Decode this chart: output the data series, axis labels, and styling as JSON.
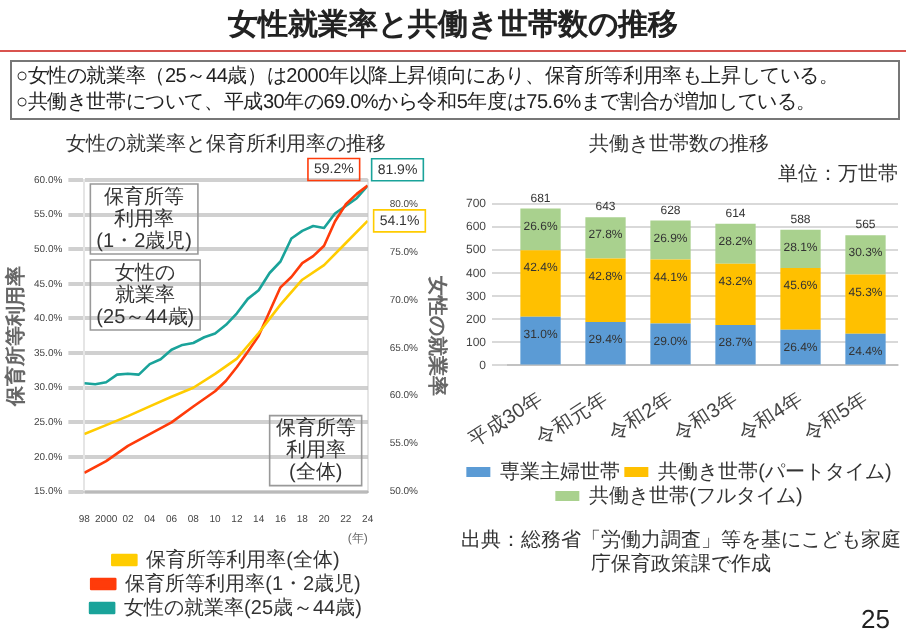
{
  "chart_data": [
    {
      "type": "other",
      "title": "女性就業率と共働き世帯数の推移",
      "annotations": [
        "○女性の就業率（25～44歳）は2000年以降上昇傾向にあり、保育所等利用率も上昇している。",
        "○共働き世帯について、平成30年の69.0%から令和5年度は75.6%まで割合が増加している。",
        "25"
      ]
    },
    {
      "type": "line",
      "title": "女性の就業率と保育所利用率の推移",
      "ylabel": "保育所等利用率",
      "y2label": "女性の就業率",
      "xlabel": "(年)",
      "xlim": [
        1998,
        2024
      ],
      "xticks": [
        {
          "value": 1998,
          "label": "98"
        },
        2000,
        {
          "value": 2002,
          "label": "02"
        },
        {
          "value": 2004,
          "label": "04"
        },
        {
          "value": 2006,
          "label": "06"
        },
        {
          "value": 2008,
          "label": "08"
        },
        {
          "value": 2010,
          "label": "10"
        },
        {
          "value": 2012,
          "label": "12"
        },
        {
          "value": 2014,
          "label": "14"
        },
        {
          "value": 2016,
          "label": "16"
        },
        {
          "value": 2018,
          "label": "18"
        },
        {
          "value": 2020,
          "label": "20"
        },
        {
          "value": 2022,
          "label": "22"
        },
        {
          "value": 2024,
          "label": "24"
        }
      ],
      "ylim": [
        15,
        60
      ],
      "yticks": [
        {
          "value": 15,
          "label": "15.0%"
        },
        {
          "value": 20,
          "label": "20.0%"
        },
        {
          "value": 25,
          "label": "25.0%"
        },
        {
          "value": 30,
          "label": "30.0%"
        },
        {
          "value": 35,
          "label": "35.0%"
        },
        {
          "value": 40,
          "label": "40.0%"
        },
        {
          "value": 45,
          "label": "45.0%"
        },
        {
          "value": 50,
          "label": "50.0%"
        },
        {
          "value": 55,
          "label": "55.0%"
        },
        {
          "value": 60,
          "label": "60.0%"
        }
      ],
      "y2lim": [
        50,
        82.5
      ],
      "y2ticks": [
        {
          "value": 50,
          "label": "50.0%"
        },
        {
          "value": 55,
          "label": "55.0%"
        },
        {
          "value": 60,
          "label": "60.0%"
        },
        {
          "value": 65,
          "label": "65.0%"
        },
        {
          "value": 70,
          "label": "70.0%"
        },
        {
          "value": 75,
          "label": "75.0%"
        },
        {
          "value": 80,
          "label": "80.0%"
        }
      ],
      "grid": "y",
      "legend": "bottom",
      "marker": "none",
      "line_style": "solid",
      "annotations": [
        "保育所等利用率(全体)",
        "保育所等利用率(1・2歳児)",
        "女性の就業率(25～44歳)"
      ],
      "series": [
        {
          "name": "保育所等利用率(全体)",
          "color": "#ffcc00",
          "x": [
            1998,
            2000,
            2002,
            2004,
            2006,
            2008,
            2010,
            2012,
            2014,
            2016,
            2018,
            2020,
            2022,
            2024
          ],
          "values": [
            23.3,
            24.6,
            25.9,
            27.3,
            28.7,
            30.0,
            32.0,
            34.2,
            37.9,
            42.0,
            45.6,
            47.7,
            50.9,
            54.1
          ],
          "value_labels": [
            null,
            null,
            null,
            null,
            null,
            null,
            null,
            null,
            null,
            null,
            null,
            null,
            null,
            "54.1%"
          ]
        },
        {
          "name": "保育所等利用率(1・2歳児)",
          "color": "#ff3b0a",
          "x": [
            1998,
            2000,
            2002,
            2004,
            2006,
            2008,
            2010,
            2011,
            2012,
            2013,
            2014,
            2015,
            2016,
            2017,
            2018,
            2019,
            2020,
            2021,
            2022,
            2023,
            2024
          ],
          "values": [
            17.7,
            19.4,
            21.6,
            23.3,
            25.0,
            27.3,
            29.5,
            31.0,
            33.0,
            35.2,
            37.5,
            41.0,
            44.5,
            46.0,
            48.0,
            49.0,
            50.5,
            54.0,
            56.5,
            58.0,
            59.2
          ],
          "value_labels": [
            null,
            null,
            null,
            null,
            null,
            null,
            null,
            null,
            null,
            null,
            null,
            null,
            null,
            null,
            null,
            null,
            null,
            null,
            null,
            null,
            "59.2%"
          ]
        },
        {
          "name": "女性の就業率(25歳～44歳)",
          "color": "#1aa39a",
          "axis": "y2",
          "x": [
            1998,
            1999,
            2000,
            2001,
            2002,
            2003,
            2004,
            2005,
            2006,
            2007,
            2008,
            2009,
            2010,
            2011,
            2012,
            2013,
            2014,
            2015,
            2016,
            2017,
            2018,
            2019,
            2020,
            2021,
            2022,
            2023,
            2024
          ],
          "values": [
            61.3,
            61.2,
            61.4,
            62.2,
            62.3,
            62.2,
            63.3,
            63.8,
            64.8,
            65.3,
            65.5,
            66.1,
            66.5,
            67.4,
            68.6,
            70.1,
            71.0,
            72.8,
            74.0,
            76.4,
            77.2,
            77.7,
            77.5,
            79.0,
            79.8,
            80.6,
            81.9
          ],
          "value_labels": [
            null,
            null,
            null,
            null,
            null,
            null,
            null,
            null,
            null,
            null,
            null,
            null,
            null,
            null,
            null,
            null,
            null,
            null,
            null,
            null,
            null,
            null,
            null,
            null,
            null,
            null,
            "81.9%"
          ]
        }
      ]
    },
    {
      "type": "bar",
      "stacked": true,
      "title": "共働き世帯数の推移",
      "categories": [
        "平成30年",
        "令和元年",
        "令和2年",
        "令和3年",
        "令和4年",
        "令和5年"
      ],
      "ylim": [
        0,
        700
      ],
      "yticks": [
        0,
        100,
        200,
        300,
        400,
        500,
        600,
        700
      ],
      "grid": "y",
      "legend": "bottom",
      "totals": [
        "681",
        "643",
        "628",
        "614",
        "588",
        "565"
      ],
      "annotations": [
        "単位：万世帯",
        {
          "text": "31.0%",
          "x": "平成30年",
          "y": 211
        },
        {
          "text": "29.4%",
          "x": "令和元年",
          "y": 189
        },
        {
          "text": "29.0%",
          "x": "令和2年",
          "y": 182
        },
        {
          "text": "28.7%",
          "x": "令和3年",
          "y": 176
        },
        {
          "text": "26.4%",
          "x": "令和4年",
          "y": 155
        },
        {
          "text": "24.4%",
          "x": "令和5年",
          "y": 138
        },
        {
          "text": "42.4%",
          "x": "平成30年",
          "y": 500
        },
        {
          "text": "42.8%",
          "x": "令和元年",
          "y": 464
        },
        {
          "text": "44.1%",
          "x": "令和2年",
          "y": 459
        },
        {
          "text": "43.2%",
          "x": "令和3年",
          "y": 441
        },
        {
          "text": "45.6%",
          "x": "令和4年",
          "y": 423
        },
        {
          "text": "45.3%",
          "x": "令和5年",
          "y": 394
        },
        {
          "text": "26.6%",
          "x": "平成30年",
          "y": 681
        },
        {
          "text": "27.8%",
          "x": "令和元年",
          "y": 643
        },
        {
          "text": "26.9%",
          "x": "令和2年",
          "y": 628
        },
        {
          "text": "28.2%",
          "x": "令和3年",
          "y": 614
        },
        {
          "text": "28.1%",
          "x": "令和4年",
          "y": 588
        },
        {
          "text": "30.3%",
          "x": "令和5年",
          "y": 565
        },
        "出典：総務省「労働力調査」等を基にこども家庭庁保育政策課で作成"
      ],
      "series": [
        {
          "name": "専業主婦世帯",
          "color": "#5b9bd5",
          "values": [
            211,
            189,
            182,
            176,
            155,
            138
          ]
        },
        {
          "name": "共働き世帯(パートタイム)",
          "color": "#ffc000",
          "values": [
            289,
            275,
            277,
            265,
            268,
            256
          ]
        },
        {
          "name": "共働き世帯(フルタイム)",
          "color": "#a9d18e",
          "values": [
            181,
            179,
            169,
            173,
            165,
            171
          ]
        }
      ]
    }
  ]
}
